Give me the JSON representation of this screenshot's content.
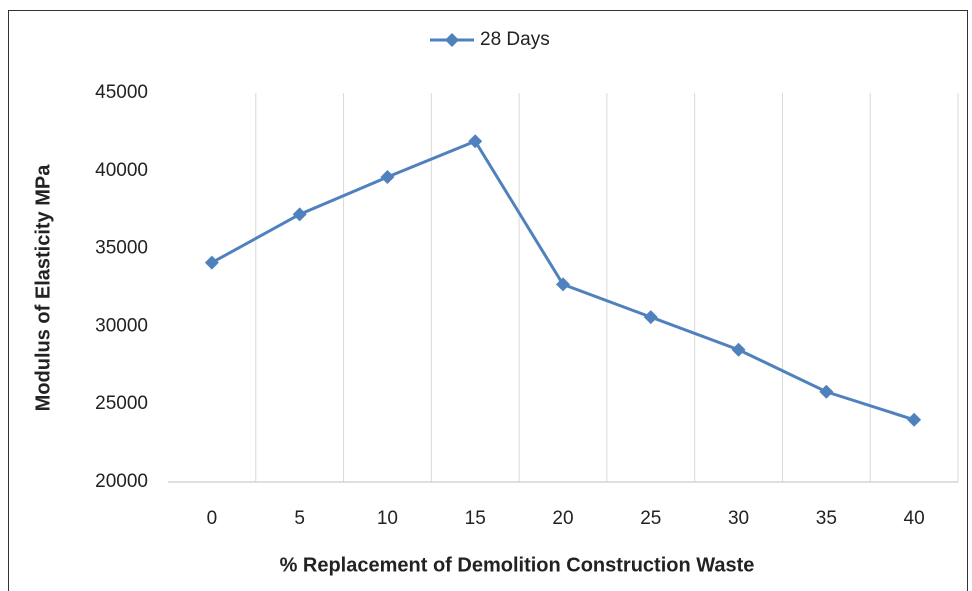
{
  "chart_data": {
    "type": "line",
    "categories": [
      "0",
      "5",
      "10",
      "15",
      "20",
      "25",
      "30",
      "35",
      "40"
    ],
    "series": [
      {
        "name": "28 Days",
        "color": "#4f81bd",
        "values": [
          34100,
          37200,
          39600,
          41900,
          32700,
          30600,
          28500,
          25800,
          24000
        ]
      }
    ],
    "x_label": "% Replacement of Demolition Construction Waste",
    "y_label": "Modulus of Elasticity MPa",
    "ylim": [
      20000,
      45000
    ],
    "yticks": [
      20000,
      25000,
      30000,
      35000,
      40000,
      45000
    ],
    "grid": false,
    "legend": "top"
  }
}
